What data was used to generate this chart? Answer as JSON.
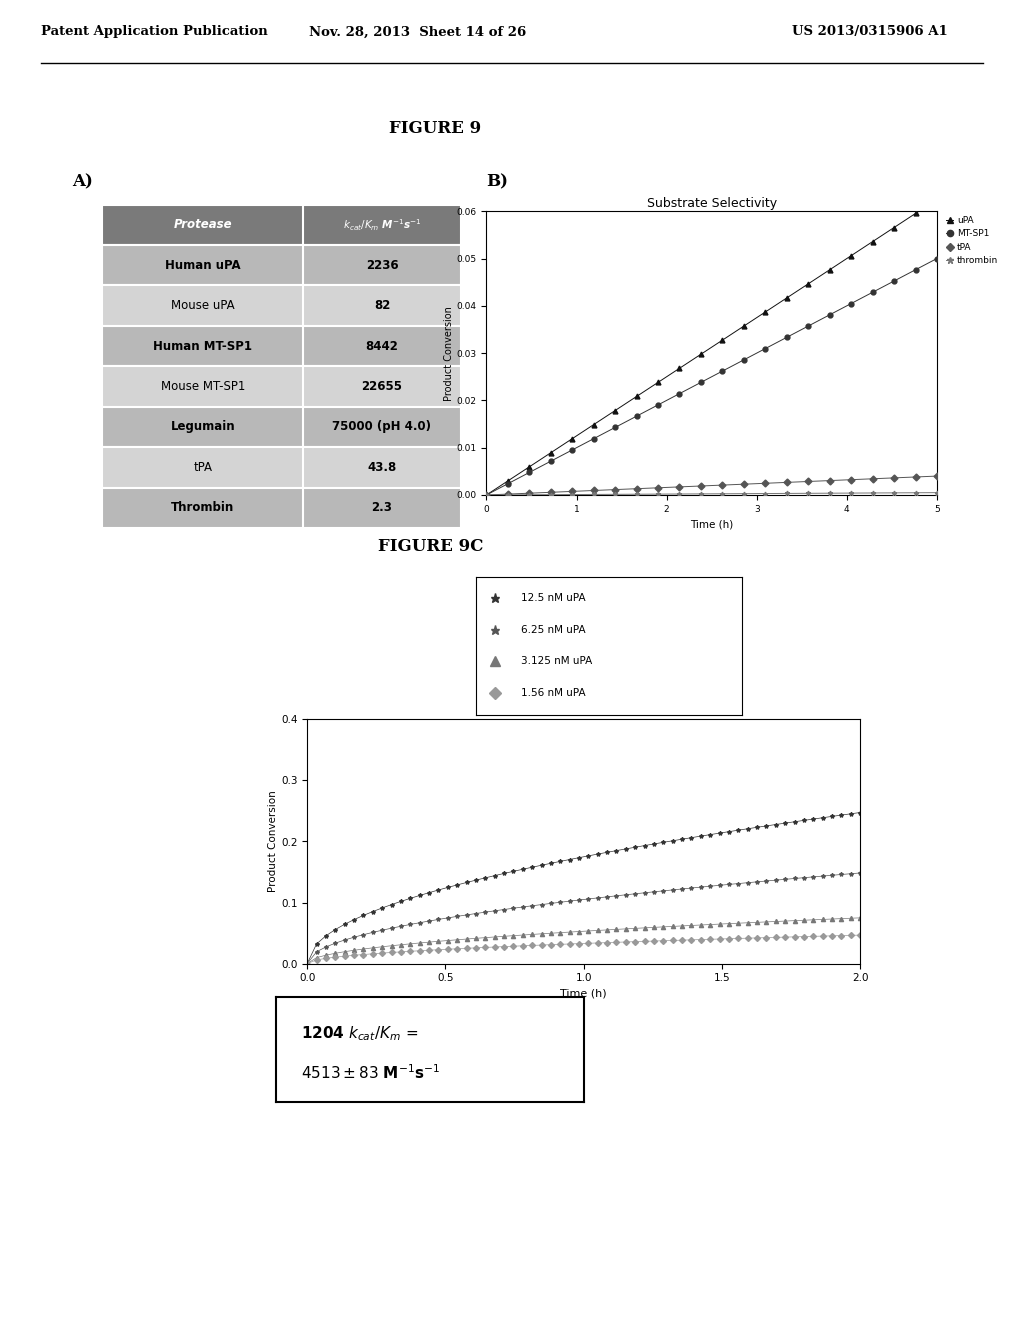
{
  "header_left": "Patent Application Publication",
  "header_mid": "Nov. 28, 2013  Sheet 14 of 26",
  "header_right": "US 2013/0315906 A1",
  "figure_label": "FIGURE 9",
  "panel_a_label": "A)",
  "panel_b_label": "B)",
  "table_rows": [
    [
      "Human uPA",
      "2236",
      true
    ],
    [
      "Mouse uPA",
      "82",
      false
    ],
    [
      "Human MT-SP1",
      "8442",
      true
    ],
    [
      "Mouse MT-SP1",
      "22655",
      false
    ],
    [
      "Legumain",
      "75000 (pH 4.0)",
      true
    ],
    [
      "tPA",
      "43.8",
      false
    ],
    [
      "Thrombin",
      "2.3",
      true
    ]
  ],
  "panel_b_title": "Substrate Selectivity",
  "panel_b_xlabel": "Time (h)",
  "panel_b_ylabel": "Product Conversion",
  "panel_b_xlim": [
    0,
    5
  ],
  "panel_b_ylim": [
    0.0,
    0.06
  ],
  "panel_b_yticks": [
    0.0,
    0.01,
    0.02,
    0.03,
    0.04,
    0.05,
    0.06
  ],
  "panel_b_xticks": [
    0,
    1,
    2,
    3,
    4,
    5
  ],
  "panel_b_lines": [
    {
      "label": "uPA",
      "slope": 0.0125,
      "marker": "^"
    },
    {
      "label": "MT-SP1",
      "slope": 0.01,
      "marker": "o"
    },
    {
      "label": "tPA",
      "slope": 0.0008,
      "marker": "D"
    },
    {
      "label": "thrombin",
      "slope": 0.0001,
      "marker": "*"
    }
  ],
  "figure_9c_label": "FIGURE 9C",
  "panel_c_xlabel": "Time (h)",
  "panel_c_ylabel": "Product Conversion",
  "panel_c_xlim": [
    0.0,
    2.0
  ],
  "panel_c_ylim": [
    0.0,
    0.4
  ],
  "panel_c_yticks": [
    0.0,
    0.1,
    0.2,
    0.3,
    0.4
  ],
  "panel_c_xticks": [
    0.0,
    0.5,
    1.0,
    1.5,
    2.0
  ],
  "panel_c_lines": [
    {
      "label": "12.5 nM uPA",
      "marker": "*",
      "scale": 0.175
    },
    {
      "label": "6.25 nM uPA",
      "marker": "*",
      "scale": 0.105
    },
    {
      "label": "3.125 nM uPA",
      "marker": "^",
      "scale": 0.053
    },
    {
      "label": "1.56 nM uPA",
      "marker": "D",
      "scale": 0.033
    }
  ]
}
